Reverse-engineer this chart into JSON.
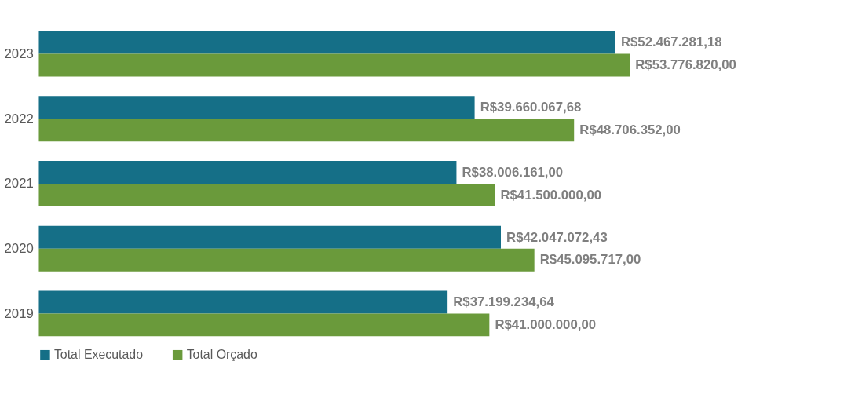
{
  "chart_data": {
    "type": "bar",
    "orientation": "horizontal",
    "categories": [
      "2023",
      "2022",
      "2021",
      "2020",
      "2019"
    ],
    "series": [
      {
        "name": "Total Executado",
        "color": "#156f87",
        "values": [
          52467281.18,
          39660067.68,
          38006161.0,
          42047072.43,
          37199234.64
        ],
        "value_labels": [
          "R$52.467.281,18",
          "R$39.660.067,68",
          "R$38.006.161,00",
          "R$42.047.072,43",
          "R$37.199.234,64"
        ]
      },
      {
        "name": "Total Orçado",
        "color": "#6a9a3b",
        "values": [
          53776820.0,
          48706352.0,
          41500000.0,
          45095717.0,
          41000000.0
        ],
        "value_labels": [
          "R$53.776.820,00",
          "R$48.706.352,00",
          "R$41.500.000,00",
          "R$45.095.717,00",
          "R$41.000.000,00"
        ]
      }
    ],
    "legend": "bottom",
    "grid": false
  }
}
